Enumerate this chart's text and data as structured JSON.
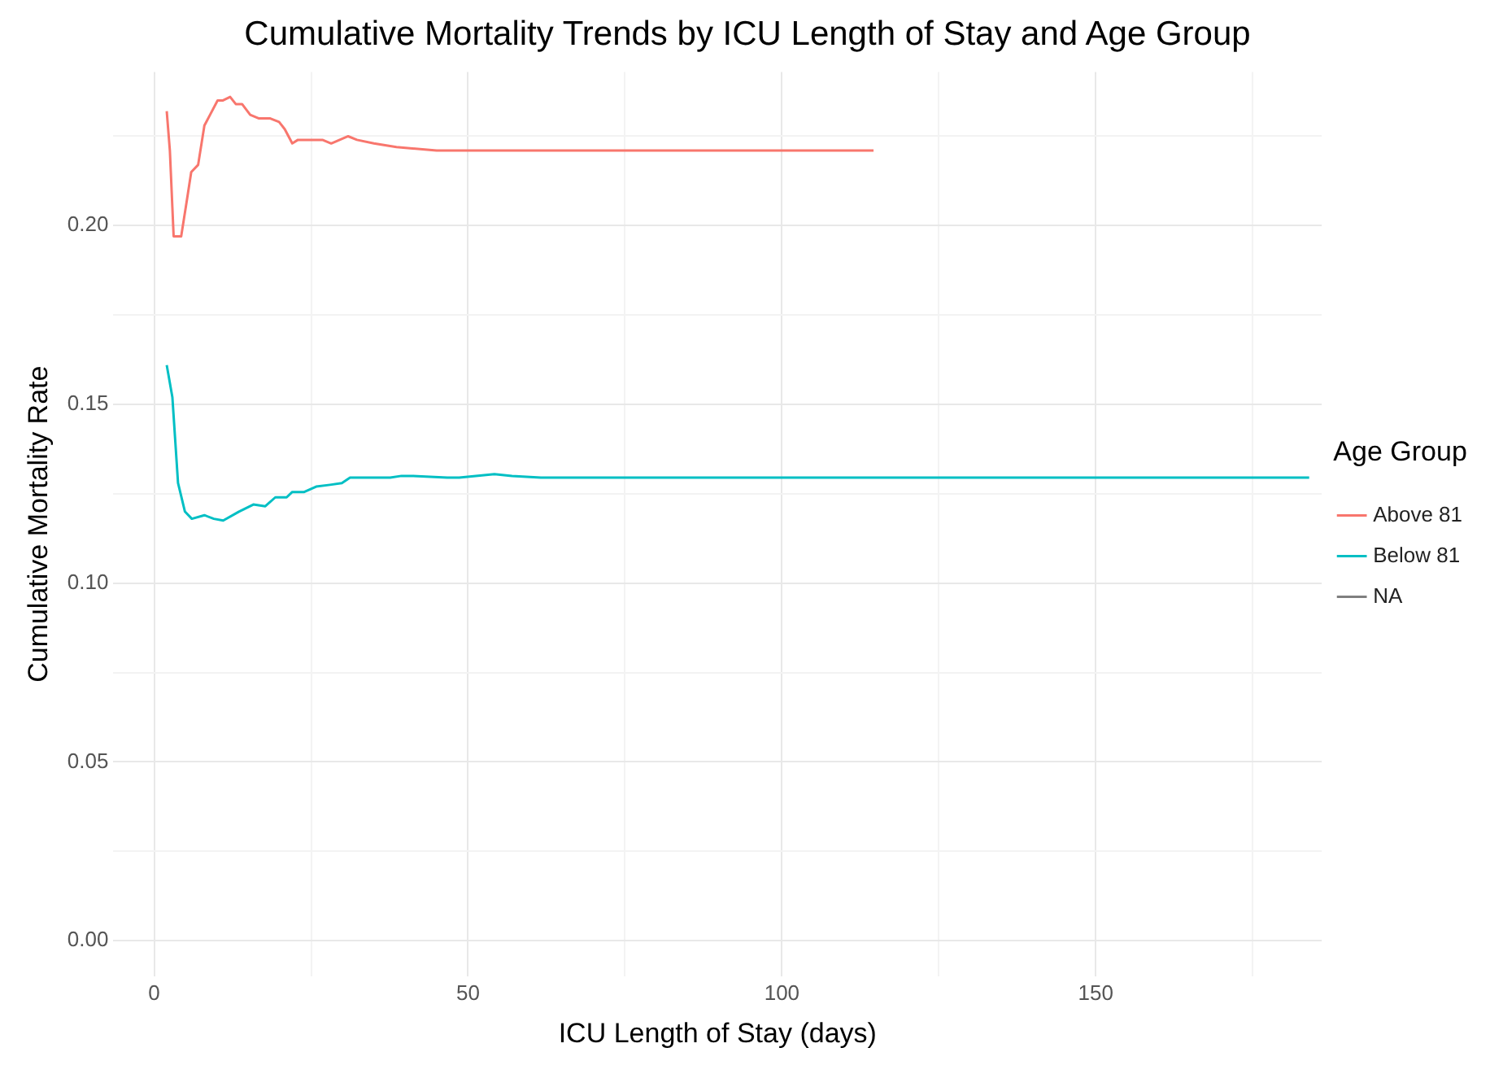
{
  "chart_data": {
    "type": "line",
    "title": "Cumulative Mortality Trends by ICU Length of Stay and Age Group",
    "xlabel": "ICU Length of Stay (days)",
    "ylabel": "Cumulative Mortality Rate",
    "legend_title": "Age Group",
    "legend": "right",
    "grid": true,
    "marker": "none",
    "line_style": "solid",
    "xlim": [
      -6.5,
      186
    ],
    "xticks": [
      0,
      {
        "value": 25,
        "label": null
      },
      50,
      {
        "value": 75,
        "label": null
      },
      100,
      {
        "value": 125,
        "label": null
      },
      150,
      {
        "value": 175,
        "label": null
      }
    ],
    "ylim": [
      -0.01,
      0.243
    ],
    "yticks": [
      {
        "value": 0,
        "label": "0.00"
      },
      {
        "value": 0.025,
        "label": null
      },
      {
        "value": 0.05,
        "label": "0.05"
      },
      {
        "value": 0.075,
        "label": null
      },
      {
        "value": 0.1,
        "label": "0.10"
      },
      {
        "value": 0.125,
        "label": null
      },
      {
        "value": 0.15,
        "label": "0.15"
      },
      {
        "value": 0.175,
        "label": null
      },
      {
        "value": 0.2,
        "label": "0.20"
      },
      {
        "value": 0.225,
        "label": null
      }
    ],
    "series": [
      {
        "name": "Above 81",
        "color": "#f8766d",
        "x": [
          2,
          2.5,
          3.1,
          4.3,
          5.2,
          5.9,
          7,
          8,
          8.9,
          10.1,
          10.9,
          12.1,
          13,
          14,
          15.3,
          16.7,
          18.5,
          19.9,
          20.8,
          22,
          22.9,
          25.4,
          26.8,
          28.2,
          30.9,
          32.3,
          35,
          38.6,
          45,
          52.4,
          114.6
        ],
        "values": [
          0.232,
          0.221,
          0.197,
          0.197,
          0.207,
          0.215,
          0.217,
          0.228,
          0.231,
          0.235,
          0.235,
          0.236,
          0.234,
          0.234,
          0.231,
          0.23,
          0.23,
          0.229,
          0.227,
          0.223,
          0.224,
          0.224,
          0.224,
          0.223,
          0.225,
          0.224,
          0.223,
          0.222,
          0.221,
          0.221,
          0.221
        ]
      },
      {
        "name": "Below 81",
        "color": "#00bfc4",
        "x": [
          2,
          2.9,
          3.8,
          4.9,
          6,
          8,
          9.5,
          11,
          13.5,
          15.8,
          17.7,
          19.3,
          21.1,
          22,
          23.9,
          25.8,
          28,
          29.9,
          31.2,
          32.6,
          37.6,
          39.4,
          41.2,
          46.7,
          48.6,
          54.2,
          57,
          61.6,
          81.7,
          184
        ],
        "values": [
          0.161,
          0.152,
          0.128,
          0.12,
          0.118,
          0.119,
          0.118,
          0.1175,
          0.12,
          0.122,
          0.1215,
          0.124,
          0.124,
          0.1255,
          0.1255,
          0.127,
          0.1275,
          0.128,
          0.1295,
          0.1295,
          0.1295,
          0.13,
          0.13,
          0.1295,
          0.1295,
          0.1305,
          0.13,
          0.1295,
          0.1295,
          0.1295
        ]
      },
      {
        "name": "NA",
        "color": "#7f7f7f"
      }
    ]
  }
}
